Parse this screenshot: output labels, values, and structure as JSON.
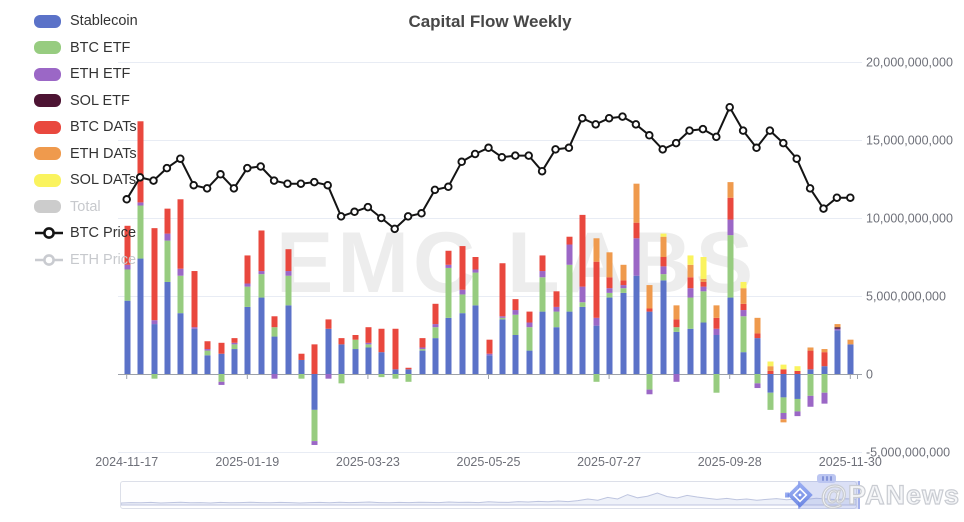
{
  "title": "Capital Flow Weekly",
  "watermark": "EMC LABS",
  "credit": {
    "handle": "@PANews",
    "logo": "panews-diamond-logo"
  },
  "legend": {
    "items": [
      {
        "label": "Stablecoin",
        "color": "#5B72C8",
        "type": "bar",
        "active": true
      },
      {
        "label": "BTC ETF",
        "color": "#97CC80",
        "type": "bar",
        "active": true
      },
      {
        "label": "ETH ETF",
        "color": "#9B67C6",
        "type": "bar",
        "active": true
      },
      {
        "label": "SOL ETF",
        "color": "#4D1433",
        "type": "bar",
        "active": true
      },
      {
        "label": "BTC DATs",
        "color": "#E9483E",
        "type": "bar",
        "active": true
      },
      {
        "label": "ETH DATs",
        "color": "#EF9A4D",
        "type": "bar",
        "active": true
      },
      {
        "label": "SOL DATs",
        "color": "#FAF35E",
        "type": "bar",
        "active": true
      },
      {
        "label": "Total",
        "color": "#CCCCCC",
        "type": "bar",
        "active": false
      },
      {
        "label": "BTC Price",
        "color": "#141414",
        "type": "line",
        "active": true
      },
      {
        "label": "ETH Price",
        "color": "#C8C8C8",
        "type": "line",
        "active": false
      }
    ]
  },
  "chart_data": {
    "type": "mixed",
    "title": "Capital Flow Weekly",
    "values_unit": "billions USD (right axis)",
    "grid": "horizontal-only",
    "y_axis": {
      "side": "right",
      "min": -5,
      "max": 20,
      "tick_step": 5,
      "tick_labels_top_down": [
        "20,000,000,000",
        "15,000,000,000",
        "10,000,000,000",
        "5,000,000,000",
        "0",
        "-5,000,000,000"
      ],
      "tick_values_top_down": [
        20,
        15,
        10,
        5,
        0,
        -5
      ]
    },
    "x_axis": {
      "tick_labels": [
        "2024-11-17",
        "2025-01-19",
        "2025-03-23",
        "2025-05-25",
        "2025-07-27",
        "2025-09-28",
        "2025-11-30"
      ],
      "tick_every_n_points": 9,
      "num_points": 55
    },
    "bar_series_names": [
      "Stablecoin",
      "BTC ETF",
      "ETH ETF",
      "SOL ETF",
      "BTC DATs",
      "ETH DATs",
      "SOL DATs"
    ],
    "bar_series_colors": [
      "#5B72C8",
      "#97CC80",
      "#9B67C6",
      "#4D1433",
      "#E9483E",
      "#EF9A4D",
      "#FAF35E"
    ],
    "bar_rows": [
      [
        4.7,
        2.0,
        0.3,
        0,
        2.5,
        0,
        0
      ],
      [
        7.4,
        3.4,
        0.2,
        0,
        5.2,
        0,
        0
      ],
      [
        3.2,
        -0.3,
        0.25,
        0,
        5.9,
        0,
        0
      ],
      [
        5.9,
        2.65,
        0.45,
        0,
        1.6,
        0,
        0
      ],
      [
        3.9,
        2.4,
        0.45,
        0,
        4.45,
        0,
        0
      ],
      [
        2.9,
        0.0,
        0.1,
        0,
        3.6,
        0,
        0
      ],
      [
        1.2,
        0.3,
        0.1,
        0,
        0.5,
        0,
        0
      ],
      [
        1.3,
        -0.5,
        -0.2,
        0,
        0.7,
        0,
        0
      ],
      [
        1.6,
        0.3,
        0.1,
        0,
        0.3,
        0,
        0
      ],
      [
        4.3,
        1.3,
        0.2,
        0,
        1.8,
        0,
        0
      ],
      [
        4.9,
        1.5,
        0.2,
        0,
        2.6,
        0,
        0
      ],
      [
        2.4,
        0.6,
        -0.3,
        0,
        0.7,
        0,
        0
      ],
      [
        4.4,
        1.9,
        0.3,
        0,
        1.4,
        0,
        0
      ],
      [
        0.9,
        -0.3,
        0.0,
        0,
        0.4,
        0,
        0
      ],
      [
        -2.3,
        -2.0,
        -0.25,
        0,
        1.9,
        0,
        0
      ],
      [
        2.9,
        0.0,
        -0.3,
        0,
        0.6,
        0,
        0
      ],
      [
        1.9,
        -0.6,
        0.0,
        0,
        0.4,
        0,
        0
      ],
      [
        1.6,
        0.6,
        0.0,
        0,
        0.3,
        0,
        0
      ],
      [
        1.7,
        0.2,
        0.1,
        0,
        1.0,
        0,
        0
      ],
      [
        1.4,
        -0.2,
        0.0,
        0,
        1.5,
        0,
        0
      ],
      [
        0.3,
        -0.3,
        0.0,
        0,
        2.6,
        0,
        0
      ],
      [
        0.3,
        -0.5,
        0.0,
        0,
        0.1,
        0,
        0
      ],
      [
        1.5,
        0.1,
        0.1,
        0,
        0.6,
        0,
        0
      ],
      [
        2.3,
        0.7,
        0.2,
        0,
        1.3,
        0,
        0
      ],
      [
        3.6,
        3.2,
        0.2,
        0,
        0.9,
        0,
        0
      ],
      [
        3.9,
        1.2,
        0.3,
        0,
        2.8,
        0,
        0
      ],
      [
        4.4,
        2.1,
        0.2,
        0,
        0.8,
        0,
        0
      ],
      [
        1.2,
        0.0,
        0.1,
        0,
        0.9,
        0,
        0
      ],
      [
        3.5,
        0.1,
        0.1,
        0,
        3.4,
        0,
        0
      ],
      [
        2.5,
        1.3,
        0.3,
        0,
        0.7,
        0,
        0
      ],
      [
        1.5,
        1.5,
        0.3,
        0,
        0.7,
        0,
        0
      ],
      [
        4.0,
        2.2,
        0.4,
        0,
        1.0,
        0,
        0
      ],
      [
        3.0,
        1.0,
        0.3,
        0,
        1.0,
        0,
        0
      ],
      [
        4.0,
        3.0,
        1.3,
        0,
        0.5,
        0,
        0
      ],
      [
        4.3,
        0.3,
        1.0,
        0,
        4.6,
        0,
        0
      ],
      [
        3.1,
        -0.5,
        0.5,
        0,
        3.6,
        1.5,
        0
      ],
      [
        4.9,
        0.3,
        0.3,
        0,
        0.7,
        1.6,
        0
      ],
      [
        5.2,
        0.3,
        0.2,
        0,
        0.3,
        1.0,
        0
      ],
      [
        6.3,
        0.0,
        2.4,
        0,
        1.0,
        2.5,
        0
      ],
      [
        4.0,
        -1.0,
        -0.3,
        0,
        0.2,
        1.5,
        0
      ],
      [
        6.0,
        0.4,
        0.5,
        0,
        0.6,
        1.3,
        0.2
      ],
      [
        2.7,
        0.3,
        -0.5,
        0,
        0.5,
        0.9,
        0
      ],
      [
        2.9,
        2.0,
        0.6,
        0,
        0.7,
        0.8,
        0.6
      ],
      [
        3.3,
        2.0,
        0.3,
        0,
        0.3,
        0.2,
        1.4
      ],
      [
        2.5,
        -1.2,
        0.4,
        0,
        0.7,
        0.8,
        0
      ],
      [
        4.9,
        4.0,
        1.0,
        0,
        1.4,
        1.0,
        0
      ],
      [
        1.4,
        2.3,
        0.4,
        0,
        0.4,
        1.0,
        0.4
      ],
      [
        2.3,
        -0.6,
        -0.3,
        0,
        0.3,
        1.0,
        0
      ],
      [
        -1.2,
        -1.1,
        0.0,
        0,
        0.2,
        0.3,
        0.3
      ],
      [
        -1.5,
        -1.0,
        -0.4,
        0,
        0.3,
        -0.2,
        0.3
      ],
      [
        -1.6,
        -0.8,
        -0.3,
        0,
        0.2,
        0.0,
        0.3
      ],
      [
        0.3,
        -1.4,
        -0.7,
        0,
        1.2,
        0.2,
        0.0
      ],
      [
        0.5,
        -1.2,
        -0.7,
        0,
        0.9,
        0.2,
        0.0
      ],
      [
        2.8,
        0.0,
        0.1,
        0.1,
        0.0,
        0.2,
        0
      ],
      [
        1.9,
        0.0,
        0.0,
        0,
        0.0,
        0.3,
        0
      ]
    ],
    "line_series": [
      {
        "name": "BTC Price",
        "color": "#141414",
        "marker": "hollow-circle",
        "values": [
          11.2,
          12.6,
          12.4,
          13.2,
          13.8,
          12.1,
          11.9,
          12.8,
          11.9,
          13.2,
          13.3,
          12.4,
          12.2,
          12.2,
          12.3,
          12.1,
          10.1,
          10.4,
          10.7,
          10.0,
          9.3,
          10.1,
          10.3,
          11.8,
          12.0,
          13.6,
          14.1,
          14.5,
          13.9,
          14.0,
          14.0,
          13.0,
          14.4,
          14.5,
          16.4,
          16.0,
          16.4,
          16.5,
          16.0,
          15.3,
          14.4,
          14.8,
          15.6,
          15.7,
          15.2,
          17.1,
          15.6,
          14.5,
          15.6,
          14.8,
          13.8,
          11.9,
          10.6,
          11.3,
          11.3
        ]
      }
    ],
    "disabled_series": [
      "Total",
      "ETH Price"
    ]
  },
  "minimap": {
    "window_position": "right-end",
    "spark": [
      0.1,
      0.12,
      0.11,
      0.13,
      0.1,
      0.12,
      0.14,
      0.11,
      0.12,
      0.1,
      0.13,
      0.11,
      0.12,
      0.14,
      0.12,
      0.11,
      0.13,
      0.12,
      0.1,
      0.12,
      0.13,
      0.11,
      0.14,
      0.12,
      0.13,
      0.15,
      0.12,
      0.11,
      0.13,
      0.12,
      0.14,
      0.13,
      0.12,
      0.15,
      0.13,
      0.14,
      0.12,
      0.16,
      0.14,
      0.13,
      0.17,
      0.15,
      0.18,
      0.16,
      0.2,
      0.17,
      0.22,
      0.3,
      0.24,
      0.38,
      0.3,
      0.52,
      0.36,
      0.44,
      0.6,
      0.42,
      0.35,
      0.48,
      0.4,
      0.34,
      0.28,
      0.33,
      0.26,
      0.3,
      0.24,
      0.28,
      0.32,
      0.26,
      0.3,
      0.28,
      0.34,
      0.3,
      0.27,
      0.31,
      0.29
    ]
  },
  "layout_colors": {
    "grid_line": "#E8ECF4",
    "axis_line": "#9DA1A9",
    "axis_text": "#6E7079",
    "title_text": "#474747",
    "watermark_text": "#EDEDED"
  }
}
